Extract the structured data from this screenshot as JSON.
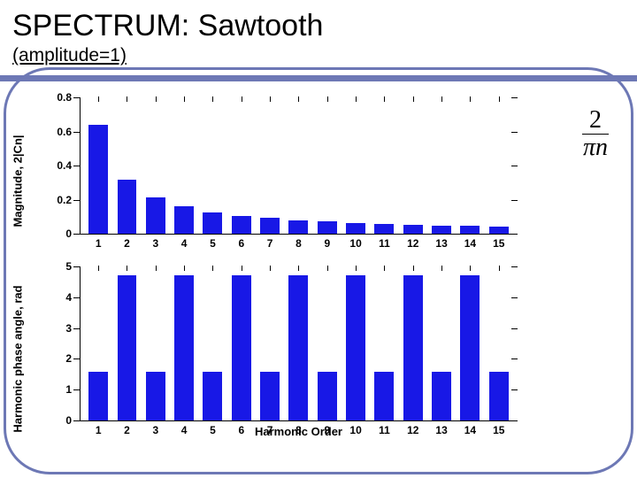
{
  "title": "SPECTRUM: Sawtooth",
  "subtitle": "(amplitude=1)",
  "accent_color": "#6d78b5",
  "formula": {
    "numerator": "2",
    "denominator_pi": "π",
    "denominator_n": "n"
  },
  "xlabel": "Harmonic Order",
  "magnitude_chart": {
    "type": "bar",
    "ylabel": "Magnitude, 2|Cn|",
    "ylim": [
      0,
      0.8
    ],
    "yticks": [
      0,
      0.2,
      0.4,
      0.6,
      0.8
    ],
    "categories": [
      1,
      2,
      3,
      4,
      5,
      6,
      7,
      8,
      9,
      10,
      11,
      12,
      13,
      14,
      15
    ],
    "values": [
      0.637,
      0.318,
      0.212,
      0.159,
      0.127,
      0.106,
      0.091,
      0.08,
      0.071,
      0.064,
      0.058,
      0.053,
      0.049,
      0.045,
      0.042
    ],
    "bar_color": "#1818e6",
    "label_fontsize": 13,
    "tick_fontsize": 12
  },
  "phase_chart": {
    "type": "bar",
    "ylabel": "Harmonic phase angle, rad",
    "ylim": [
      0,
      5
    ],
    "yticks": [
      0,
      1,
      2,
      3,
      4,
      5
    ],
    "categories": [
      1,
      2,
      3,
      4,
      5,
      6,
      7,
      8,
      9,
      10,
      11,
      12,
      13,
      14,
      15
    ],
    "values": [
      1.571,
      4.712,
      1.571,
      4.712,
      1.571,
      4.712,
      1.571,
      4.712,
      1.571,
      4.712,
      1.571,
      4.712,
      1.571,
      4.712,
      1.571
    ],
    "bar_color": "#1818e6",
    "label_fontsize": 13,
    "tick_fontsize": 12
  }
}
